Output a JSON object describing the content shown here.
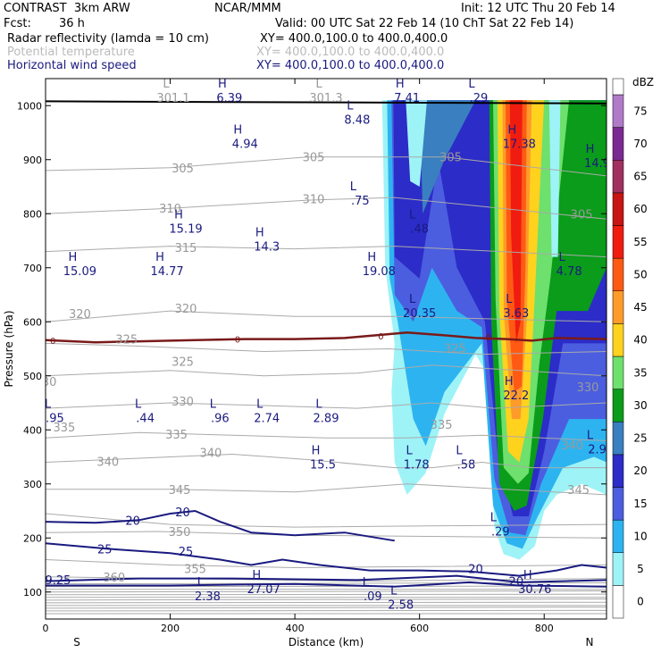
{
  "header": {
    "model": "CONTRAST  3km ARW",
    "org": "NCAR/MMM",
    "init": "Init: 12 UTC Thu 20 Feb 14",
    "fcst_label": "Fcst:",
    "fcst_value": "36 h",
    "valid": "Valid: 00 UTC Sat 22 Feb 14 (10 ChT Sat 22 Feb 14)"
  },
  "fields": [
    {
      "name": "Radar reflectivity (lamda = 10 cm)",
      "xy": "XY= 400.0,100.0 to 400.0,400.0",
      "color": "#000000"
    },
    {
      "name": "Potential temperature",
      "xy": "XY= 400.0,100.0 to 400.0,400.0",
      "color": "#bbbbbb"
    },
    {
      "name": "Horizontal wind speed",
      "xy": "XY= 400.0,100.0 to 400.0,400.0",
      "color": "#1a1a80"
    }
  ],
  "chart_data": {
    "type": "heatmap",
    "xlabel": "Distance (km)",
    "ylabel": "Pressure (hPa)",
    "xlim": [
      0,
      900
    ],
    "ylim": [
      1050,
      50
    ],
    "x_ticks": [
      0,
      200,
      400,
      600,
      800
    ],
    "y_ticks": [
      100,
      200,
      300,
      400,
      500,
      600,
      700,
      800,
      900,
      1000
    ],
    "x_end_labels": {
      "left": "S",
      "right": "N"
    },
    "colorbar": {
      "unit": "dBZ",
      "levels": [
        0,
        5,
        10,
        15,
        20,
        25,
        30,
        35,
        40,
        45,
        50,
        55,
        60,
        65,
        70,
        75
      ],
      "colors": [
        "#ffffff",
        "#9ef3f7",
        "#2db4f0",
        "#4b5ee0",
        "#2c2cc8",
        "#3a7fbf",
        "#0a9c1a",
        "#6de06d",
        "#ffd21e",
        "#ff9b2a",
        "#ff5a14",
        "#f01c10",
        "#c81414",
        "#a03060",
        "#7a2a90",
        "#b07ac8"
      ]
    },
    "theta_contour_labels": [
      {
        "value": "360",
        "x": 110,
        "p": 128
      },
      {
        "value": "355",
        "x": 240,
        "p": 143
      },
      {
        "value": "350",
        "x": 215,
        "p": 212
      },
      {
        "value": "345",
        "x": 215,
        "p": 290
      },
      {
        "value": "345",
        "x": 855,
        "p": 290
      },
      {
        "value": "340",
        "x": 100,
        "p": 342
      },
      {
        "value": "340",
        "x": 265,
        "p": 358
      },
      {
        "value": "340",
        "x": 845,
        "p": 372
      },
      {
        "value": "335",
        "x": 30,
        "p": 405
      },
      {
        "value": "335",
        "x": 210,
        "p": 392
      },
      {
        "value": "335",
        "x": 635,
        "p": 410
      },
      {
        "value": "330",
        "x": 0,
        "p": 490
      },
      {
        "value": "330",
        "x": 220,
        "p": 453
      },
      {
        "value": "330",
        "x": 870,
        "p": 480
      },
      {
        "value": "325",
        "x": 220,
        "p": 527
      },
      {
        "value": "325",
        "x": 130,
        "p": 568
      },
      {
        "value": "325",
        "x": 657,
        "p": 552
      },
      {
        "value": "320",
        "x": 55,
        "p": 615
      },
      {
        "value": "320",
        "x": 225,
        "p": 625
      },
      {
        "value": "315",
        "x": 225,
        "p": 738
      },
      {
        "value": "310",
        "x": 200,
        "p": 810
      },
      {
        "value": "310",
        "x": 430,
        "p": 828
      },
      {
        "value": "305",
        "x": 220,
        "p": 885
      },
      {
        "value": "305",
        "x": 430,
        "p": 905
      },
      {
        "value": "305",
        "x": 650,
        "p": 905
      },
      {
        "value": "305",
        "x": 860,
        "p": 800
      }
    ],
    "wind_contour_labels": [
      {
        "value": "25",
        "x": 95,
        "p": 180
      },
      {
        "value": "25",
        "x": 225,
        "p": 176
      },
      {
        "value": "20",
        "x": 140,
        "p": 233
      },
      {
        "value": "20",
        "x": 220,
        "p": 248
      },
      {
        "value": "20",
        "x": 690,
        "p": 143
      },
      {
        "value": "20",
        "x": 755,
        "p": 120
      }
    ],
    "freezing_level_labels": [
      {
        "value": "0",
        "x": 12,
        "p": 566
      },
      {
        "value": "0",
        "x": 308,
        "p": 568
      },
      {
        "value": "0",
        "x": 538,
        "p": 574
      },
      {
        "value": "0",
        "x": 710,
        "p": 572
      }
    ],
    "extrema": [
      {
        "type": "L",
        "value": "2.38",
        "x": 260,
        "p": 98
      },
      {
        "type": "H",
        "value": "27.07",
        "x": 350,
        "p": 111
      },
      {
        "type": "L",
        "value": ".09",
        "x": 525,
        "p": 98
      },
      {
        "type": "L",
        "value": "2.58",
        "x": 570,
        "p": 82
      },
      {
        "type": "H",
        "value": "30.76",
        "x": 785,
        "p": 111
      },
      {
        "type": "",
        "value": "9.25",
        "x": 20,
        "p": 128
      },
      {
        "type": "L",
        "value": ".29",
        "x": 730,
        "p": 218
      },
      {
        "type": "H",
        "value": "15.5",
        "x": 445,
        "p": 342
      },
      {
        "type": "L",
        "value": "1.78",
        "x": 595,
        "p": 342
      },
      {
        "type": "L",
        "value": ".58",
        "x": 675,
        "p": 342
      },
      {
        "type": "L",
        "value": "2.9",
        "x": 885,
        "p": 370
      },
      {
        "type": "L",
        "value": ".95",
        "x": 15,
        "p": 428
      },
      {
        "type": "L",
        "value": ".44",
        "x": 160,
        "p": 428
      },
      {
        "type": "L",
        "value": ".96",
        "x": 280,
        "p": 428
      },
      {
        "type": "L",
        "value": "2.74",
        "x": 355,
        "p": 428
      },
      {
        "type": "L",
        "value": "2.89",
        "x": 450,
        "p": 428
      },
      {
        "type": "H",
        "value": "22.2",
        "x": 755,
        "p": 470
      },
      {
        "type": "L",
        "value": "20.35",
        "x": 600,
        "p": 622
      },
      {
        "type": "L",
        "value": "3.63",
        "x": 755,
        "p": 622
      },
      {
        "type": "H",
        "value": "15.09",
        "x": 55,
        "p": 700
      },
      {
        "type": "H",
        "value": "14.77",
        "x": 195,
        "p": 700
      },
      {
        "type": "H",
        "value": "19.08",
        "x": 535,
        "p": 700
      },
      {
        "type": "L",
        "value": "4.78",
        "x": 840,
        "p": 700
      },
      {
        "type": "H",
        "value": "14.3",
        "x": 355,
        "p": 745
      },
      {
        "type": "H",
        "value": "15.19",
        "x": 225,
        "p": 778
      },
      {
        "type": "L",
        "value": ".48",
        "x": 600,
        "p": 778
      },
      {
        "type": "L",
        "value": ".75",
        "x": 505,
        "p": 830
      },
      {
        "type": "H",
        "value": "4.94",
        "x": 320,
        "p": 935
      },
      {
        "type": "H",
        "value": "14.9",
        "x": 885,
        "p": 900
      },
      {
        "type": "H",
        "value": "17.38",
        "x": 760,
        "p": 935
      },
      {
        "type": "L",
        "value": "8.48",
        "x": 500,
        "p": 980
      },
      {
        "type": "L",
        "value": "301.1",
        "x": 205,
        "p": 1020
      },
      {
        "type": "L",
        "value": "301.3",
        "x": 450,
        "p": 1020
      },
      {
        "type": "H",
        "value": "6.39",
        "x": 295,
        "p": 1020
      },
      {
        "type": "H",
        "value": "7.41",
        "x": 580,
        "p": 1020
      },
      {
        "type": "L",
        "value": ".29",
        "x": 695,
        "p": 1020
      }
    ]
  }
}
